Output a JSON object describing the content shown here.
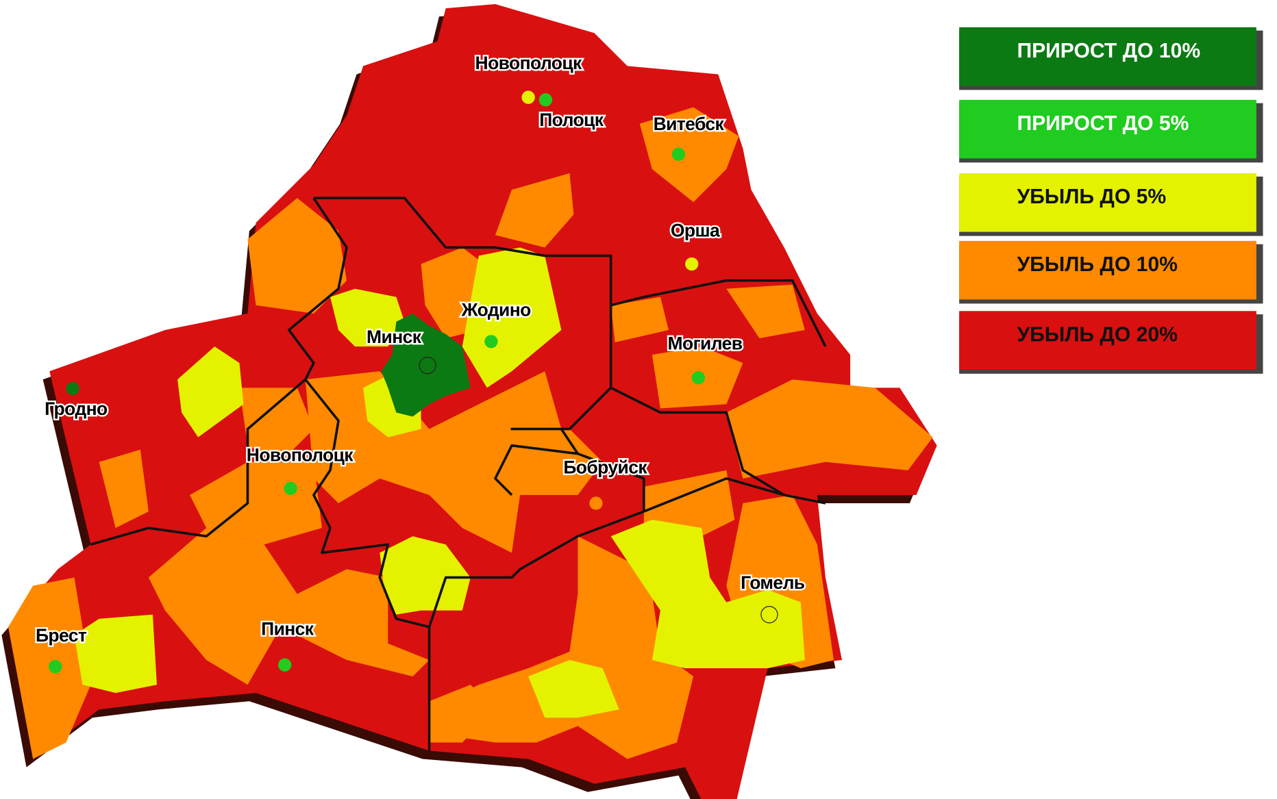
{
  "legend": [
    {
      "label": "ПРИРОСТ ДО 10%",
      "color": "#0b7a12",
      "text_color": "#ffffff"
    },
    {
      "label": "ПРИРОСТ ДО 5%",
      "color": "#1fcc1f",
      "text_color": "#ffffff"
    },
    {
      "label": "УБЫЛЬ ДО 5%",
      "color": "#e4f200",
      "text_color": "#111111"
    },
    {
      "label": "УБЫЛЬ ДО 10%",
      "color": "#ff8a00",
      "text_color": "#111111"
    },
    {
      "label": "УБЫЛЬ ДО 20%",
      "color": "#d91010",
      "text_color": "#111111"
    }
  ],
  "cities": [
    {
      "name": "Новополоцк",
      "dot": "#e4f200"
    },
    {
      "name": "Полоцк",
      "dot": "#1fcc1f"
    },
    {
      "name": "Витебск",
      "dot": "#1fcc1f"
    },
    {
      "name": "Орша",
      "dot": "#e4f200"
    },
    {
      "name": "Могилев",
      "dot": "#1fcc1f"
    },
    {
      "name": "Жодино",
      "dot": "#1fcc1f"
    },
    {
      "name": "Минск",
      "dot": "none"
    },
    {
      "name": "Гродно",
      "dot": "#0b7a12"
    },
    {
      "name": "Новополоцк",
      "dot": "#1fcc1f"
    },
    {
      "name": "Бобруйск",
      "dot": "#ff8a00"
    },
    {
      "name": "Гомель",
      "dot": "none"
    },
    {
      "name": "Брест",
      "dot": "#1fcc1f"
    },
    {
      "name": "Пинск",
      "dot": "#1fcc1f"
    }
  ]
}
